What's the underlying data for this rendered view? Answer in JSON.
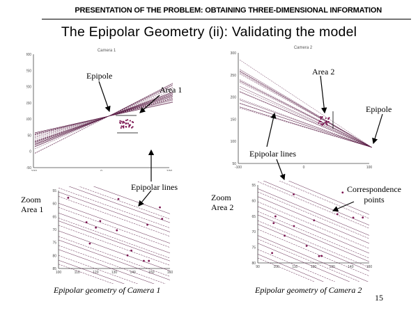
{
  "header": {
    "text": "PRESENTATION OF THE PROBLEM: OBTAINING THREE-DIMENSIONAL INFORMATION"
  },
  "title": "The Epipolar Geometry (ii): Validating the model",
  "plots": {
    "camera1": {
      "title": "Camera 1",
      "y_ticks": [
        "300",
        "250",
        "200",
        "150",
        "100",
        "50",
        "0",
        "-50"
      ],
      "x_ticks": [
        "-100",
        "0",
        "100"
      ]
    },
    "camera2": {
      "title": "Camera 2",
      "y_ticks": [
        "300",
        "250",
        "200",
        "150",
        "100",
        "50"
      ],
      "x_ticks": [
        "-100",
        "0",
        "100"
      ]
    },
    "zoom1": {
      "y_ticks": [
        "55",
        "60",
        "65",
        "70",
        "75",
        "80",
        "85"
      ],
      "x_ticks": [
        "100",
        "110",
        "120",
        "130",
        "140",
        "150",
        "160"
      ]
    },
    "zoom2": {
      "y_ticks": [
        "55",
        "60",
        "65",
        "70",
        "75",
        "80"
      ],
      "x_ticks": [
        "90",
        "100",
        "110",
        "120",
        "130",
        "140",
        "150"
      ]
    }
  },
  "labels": {
    "epipole_cam1": "Epipole",
    "area1": "Area 1",
    "area2": "Area 2",
    "epipole_cam2": "Epipole",
    "epipolar_lines_cam2": "Epipolar lines",
    "epipolar_lines_zoom1": "Epipolar lines",
    "zoom_area1_line1": "Zoom",
    "zoom_area1_line2": "Area 1",
    "zoom_area2_line1": "Zoom",
    "zoom_area2_line2": "Area 2",
    "correspondence_line1": "Correspondence",
    "correspondence_line2": "points"
  },
  "captions": {
    "camera1": "Epipolar geometry of Camera 1",
    "camera2": "Epipolar geometry of Camera 2"
  },
  "page_number": "15",
  "colors": {
    "line": "#5a1e46",
    "point": "#7a1450",
    "axis": "#444444"
  }
}
